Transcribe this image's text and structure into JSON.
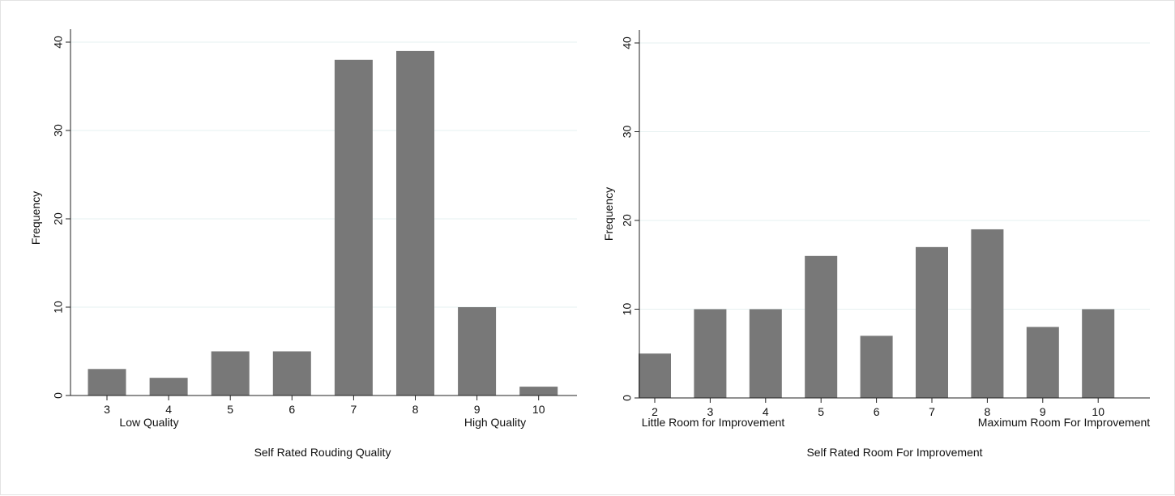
{
  "colors": {
    "bar": "#787878",
    "axis": "#222222",
    "grid": "#e6f0f0",
    "text": "#111111"
  },
  "chart_data": [
    {
      "type": "bar",
      "categories": [
        "3",
        "4",
        "5",
        "6",
        "7",
        "8",
        "9",
        "10"
      ],
      "values": [
        3,
        2,
        5,
        5,
        38,
        39,
        10,
        1
      ],
      "xlabel": "Self Rated Rouding Quality",
      "ylabel": "Frequency",
      "ylim": [
        0,
        40
      ],
      "yticks": [
        "0",
        "10",
        "20",
        "30",
        "40"
      ],
      "low_anchor": "Low Quality",
      "high_anchor": "High Quality",
      "grid": true
    },
    {
      "type": "bar",
      "categories": [
        "2",
        "3",
        "4",
        "5",
        "6",
        "7",
        "8",
        "9",
        "10"
      ],
      "values": [
        5,
        10,
        10,
        16,
        7,
        17,
        19,
        8,
        10
      ],
      "xlabel": "Self Rated Room For Improvement",
      "ylabel": "Frequency",
      "ylim": [
        0,
        40
      ],
      "yticks": [
        "0",
        "10",
        "20",
        "30",
        "40"
      ],
      "low_anchor": "Little Room for Improvement",
      "high_anchor": "Maximum Room For Improvement",
      "grid": true
    }
  ]
}
